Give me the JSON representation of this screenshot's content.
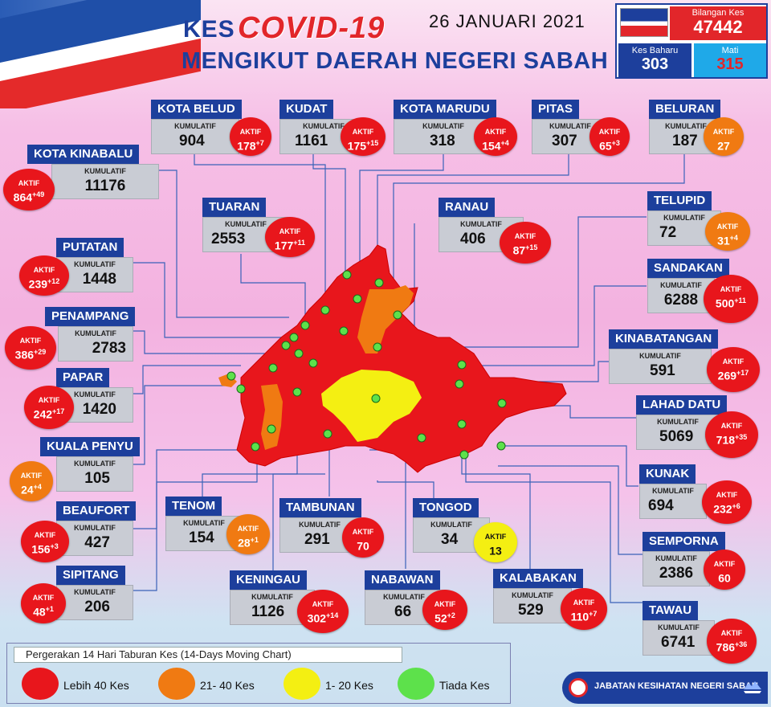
{
  "header": {
    "kes": "KES",
    "covid": "COVID-19",
    "date": "26 JANUARI 2021",
    "subtitle": "MENGIKUT DAERAH NEGERI SABAH"
  },
  "stats": {
    "total_label": "Bilangan Kes",
    "total_value": "47442",
    "new_label": "Kes Baharu",
    "new_value": "303",
    "dead_label": "Mati",
    "dead_value": "315"
  },
  "labels": {
    "kumulatif": "KUMULATIF",
    "aktif": "AKTIF"
  },
  "districts": [
    {
      "name": "KOTA BELUD",
      "kumulatif": "904",
      "aktif": "178",
      "plus": "+7",
      "color": "red"
    },
    {
      "name": "KUDAT",
      "kumulatif": "1161",
      "aktif": "175",
      "plus": "+15",
      "color": "red"
    },
    {
      "name": "KOTA MARUDU",
      "kumulatif": "318",
      "aktif": "154",
      "plus": "+4",
      "color": "red"
    },
    {
      "name": "PITAS",
      "kumulatif": "307",
      "aktif": "65",
      "plus": "+3",
      "color": "red"
    },
    {
      "name": "BELURAN",
      "kumulatif": "187",
      "aktif": "27",
      "plus": "",
      "color": "orange"
    },
    {
      "name": "KOTA KINABALU",
      "kumulatif": "11176",
      "aktif": "864",
      "plus": "+49",
      "color": "red"
    },
    {
      "name": "TUARAN",
      "kumulatif": "2553",
      "aktif": "177",
      "plus": "+11",
      "color": "red"
    },
    {
      "name": "RANAU",
      "kumulatif": "406",
      "aktif": "87",
      "plus": "+15",
      "color": "red"
    },
    {
      "name": "TELUPID",
      "kumulatif": "72",
      "aktif": "31",
      "plus": "+4",
      "color": "orange"
    },
    {
      "name": "PUTATAN",
      "kumulatif": "1448",
      "aktif": "239",
      "plus": "+12",
      "color": "red"
    },
    {
      "name": "SANDAKAN",
      "kumulatif": "6288",
      "aktif": "500",
      "plus": "+11",
      "color": "red"
    },
    {
      "name": "PENAMPANG",
      "kumulatif": "2783",
      "aktif": "386",
      "plus": "+29",
      "color": "red"
    },
    {
      "name": "KINABATANGAN",
      "kumulatif": "591",
      "aktif": "269",
      "plus": "+17",
      "color": "red"
    },
    {
      "name": "PAPAR",
      "kumulatif": "1420",
      "aktif": "242",
      "plus": "+17",
      "color": "red"
    },
    {
      "name": "LAHAD DATU",
      "kumulatif": "5069",
      "aktif": "718",
      "plus": "+35",
      "color": "red"
    },
    {
      "name": "KUALA PENYU",
      "kumulatif": "105",
      "aktif": "24",
      "plus": "+4",
      "color": "orange"
    },
    {
      "name": "KUNAK",
      "kumulatif": "694",
      "aktif": "232",
      "plus": "+6",
      "color": "red"
    },
    {
      "name": "TENOM",
      "kumulatif": "154",
      "aktif": "28",
      "plus": "+1",
      "color": "orange"
    },
    {
      "name": "TAMBUNAN",
      "kumulatif": "291",
      "aktif": "70",
      "plus": "",
      "color": "red"
    },
    {
      "name": "TONGOD",
      "kumulatif": "34",
      "aktif": "13",
      "plus": "",
      "color": "yellow"
    },
    {
      "name": "BEAUFORT",
      "kumulatif": "427",
      "aktif": "156",
      "plus": "+3",
      "color": "red"
    },
    {
      "name": "SEMPORNA",
      "kumulatif": "2386",
      "aktif": "60",
      "plus": "",
      "color": "red"
    },
    {
      "name": "SIPITANG",
      "kumulatif": "206",
      "aktif": "48",
      "plus": "+1",
      "color": "red"
    },
    {
      "name": "KENINGAU",
      "kumulatif": "1126",
      "aktif": "302",
      "plus": "+14",
      "color": "red"
    },
    {
      "name": "NABAWAN",
      "kumulatif": "66",
      "aktif": "52",
      "plus": "+2",
      "color": "red"
    },
    {
      "name": "KALABAKAN",
      "kumulatif": "529",
      "aktif": "110",
      "plus": "+7",
      "color": "red"
    },
    {
      "name": "TAWAU",
      "kumulatif": "6741",
      "aktif": "786",
      "plus": "+36",
      "color": "red"
    }
  ],
  "colors": {
    "red": "#e8161c",
    "orange": "#f07a12",
    "yellow": "#f4ef12",
    "green": "#5de14b",
    "navy": "#1d3f9c"
  },
  "legend": {
    "title": "Pergerakan 14 Hari Taburan Kes (14-Days Moving Chart)",
    "items": [
      {
        "color": "red",
        "label": "Lebih 40 Kes"
      },
      {
        "color": "orange",
        "label": "21- 40 Kes"
      },
      {
        "color": "yellow",
        "label": "1- 20 Kes"
      },
      {
        "color": "green",
        "label": "Tiada Kes"
      }
    ]
  },
  "footer": {
    "text": "JABATAN KESIHATAN NEGERI SABAH"
  }
}
